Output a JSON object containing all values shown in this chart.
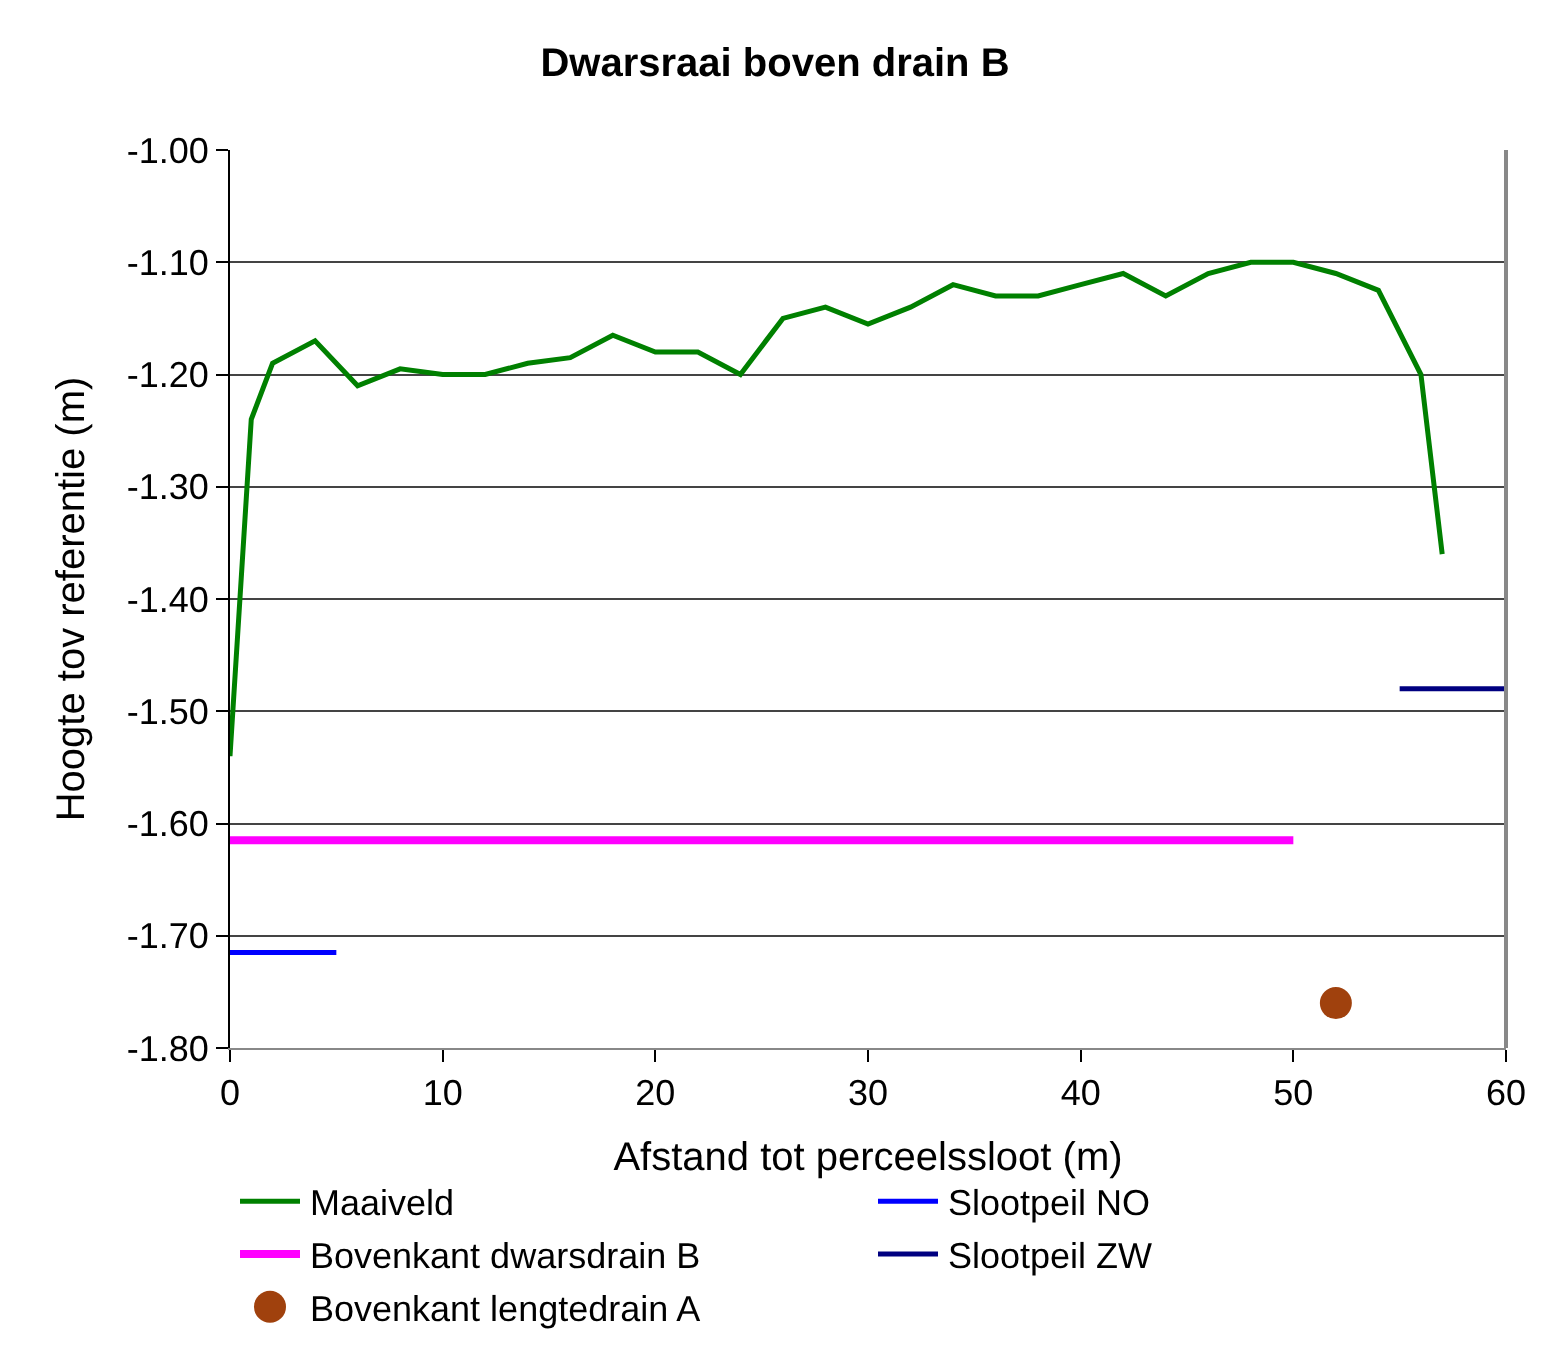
{
  "chart_data": {
    "type": "line",
    "title": "Dwarsraai boven drain B",
    "xlabel": "Afstand tot perceelssloot (m)",
    "ylabel": "Hoogte tov referentie (m)",
    "xlim": [
      0,
      60
    ],
    "xticks": [
      0,
      10,
      20,
      30,
      40,
      50,
      60
    ],
    "ylim": [
      -1.8,
      -1.0
    ],
    "yticks": [
      {
        "value": -1.8,
        "label": "-1.80"
      },
      {
        "value": -1.7,
        "label": "-1.70"
      },
      {
        "value": -1.6,
        "label": "-1.60"
      },
      {
        "value": -1.5,
        "label": "-1.50"
      },
      {
        "value": -1.4,
        "label": "-1.40"
      },
      {
        "value": -1.3,
        "label": "-1.30"
      },
      {
        "value": -1.2,
        "label": "-1.20"
      },
      {
        "value": -1.1,
        "label": "-1.10"
      },
      {
        "value": -1.0,
        "label": "-1.00"
      }
    ],
    "grid": "y",
    "legend": "bottom",
    "marker": "none",
    "line_style": "solid",
    "series": [
      {
        "name": "Maaiveld",
        "color": "#008000",
        "x": [
          0,
          1,
          2,
          4,
          6,
          8,
          10,
          12,
          14,
          16,
          18,
          20,
          22,
          24,
          26,
          28,
          30,
          32,
          34,
          36,
          38,
          40,
          42,
          44,
          46,
          48,
          50,
          52,
          54,
          56,
          57
        ],
        "values": [
          -1.54,
          -1.24,
          -1.19,
          -1.17,
          -1.21,
          -1.195,
          -1.2,
          -1.2,
          -1.19,
          -1.185,
          -1.165,
          -1.18,
          -1.18,
          -1.2,
          -1.15,
          -1.14,
          -1.155,
          -1.14,
          -1.12,
          -1.13,
          -1.13,
          -1.12,
          -1.11,
          -1.13,
          -1.11,
          -1.1,
          -1.1,
          -1.11,
          -1.125,
          -1.2,
          -1.36
        ]
      },
      {
        "name": "Slootpeil NO",
        "color": "#0000ff",
        "x": [
          0,
          5
        ],
        "values": [
          -1.715,
          -1.715
        ]
      },
      {
        "name": "Bovenkant dwarsdrain B",
        "color": "#ff00ff",
        "x": [
          0,
          50
        ],
        "values": [
          -1.615,
          -1.615
        ]
      },
      {
        "name": "Slootpeil ZW",
        "color": "#000080",
        "x": [
          55,
          60
        ],
        "values": [
          -1.48,
          -1.48
        ]
      },
      {
        "name": "Bovenkant lengtedrain A",
        "color": "#a0410d",
        "type": "scatter",
        "marker": "circle",
        "x": [
          52
        ],
        "values": [
          -1.76
        ]
      }
    ]
  }
}
